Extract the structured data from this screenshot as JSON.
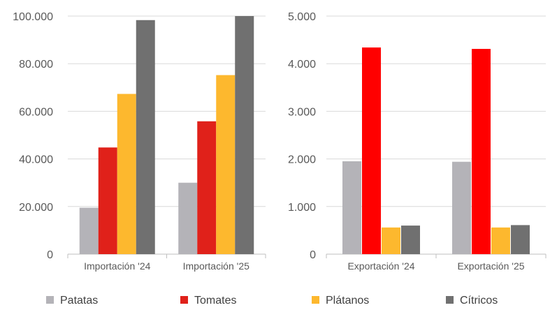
{
  "chart_data": [
    {
      "type": "bar",
      "categories": [
        "Importación '24",
        "Importación '25"
      ],
      "series": [
        {
          "name": "Patatas",
          "values": [
            19500,
            30000
          ]
        },
        {
          "name": "Tomates",
          "values": [
            44800,
            55800
          ]
        },
        {
          "name": "Plátanos",
          "values": [
            67300,
            75200
          ]
        },
        {
          "name": "Cítricos",
          "values": [
            98300,
            100000
          ]
        }
      ],
      "ylim": [
        0,
        100000
      ],
      "yticks": [
        "0",
        "20.000",
        "40.000",
        "60.000",
        "80.000",
        "100.000"
      ],
      "grid": true
    },
    {
      "type": "bar",
      "categories": [
        "Exportación '24",
        "Exportación '25"
      ],
      "series": [
        {
          "name": "Patatas",
          "values": [
            1950,
            1940
          ]
        },
        {
          "name": "Tomates",
          "values": [
            4340,
            4310
          ]
        },
        {
          "name": "Plátanos",
          "values": [
            560,
            560
          ]
        },
        {
          "name": "Cítricos",
          "values": [
            600,
            610
          ]
        }
      ],
      "ylim": [
        0,
        5000
      ],
      "yticks": [
        "0",
        "1.000",
        "2.000",
        "3.000",
        "4.000",
        "5.000"
      ],
      "grid": true
    }
  ],
  "legend": {
    "placement": "bottom",
    "items": [
      {
        "label": "Patatas",
        "color": "#b4b3b8"
      },
      {
        "label": "Tomates",
        "color": "#e0211a"
      },
      {
        "label": "Plátanos",
        "color": "#fdb82e"
      },
      {
        "label": "Cítricos",
        "color": "#707070"
      }
    ]
  },
  "colors": {
    "Patatas": "#b4b3b8",
    "Tomates_import": "#e0211a",
    "Tomates_export": "#ff0000",
    "Plátanos": "#fdb82e",
    "Cítricos": "#707070",
    "grid": "#d9d9d9",
    "axis": "#bfbfbf"
  }
}
